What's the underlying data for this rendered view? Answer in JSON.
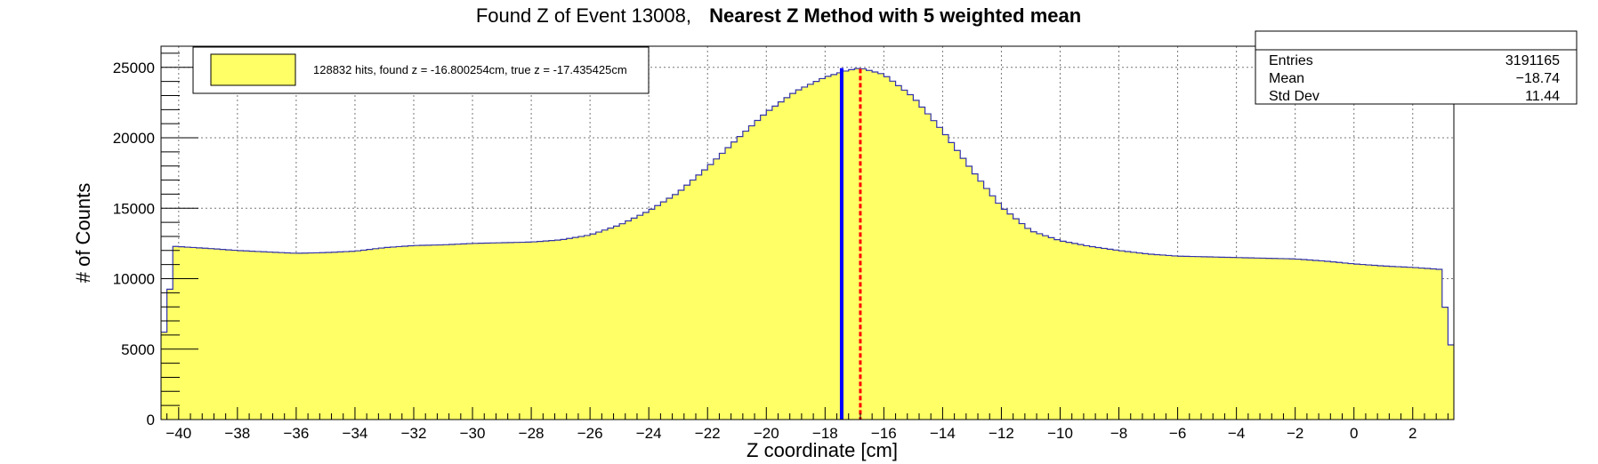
{
  "title": {
    "prefix": "Found Z of Event 13008,",
    "bold": "Nearest Z Method with 5 weighted mean"
  },
  "legend": {
    "label": "128832 hits, found z = -16.800254cm, true z = -17.435425cm",
    "fill_color": "#ffff66"
  },
  "stats": {
    "rows": [
      {
        "label": "Entries",
        "value": "3191165"
      },
      {
        "label": "Mean",
        "value": "−18.74"
      },
      {
        "label": "Std Dev",
        "value": "11.44"
      }
    ]
  },
  "colors": {
    "fill": "#ffff66",
    "outline": "#3333aa",
    "found_line": "#0000ff",
    "true_line": "#ff0000"
  },
  "chart_data": {
    "type": "bar",
    "xlabel": "Z coordinate [cm]",
    "ylabel": "# of Counts",
    "xlim": [
      -40.6,
      3.4
    ],
    "ylim": [
      0,
      26500
    ],
    "grid": true,
    "legend_position": "top-left",
    "x_ticks": [
      -40,
      -38,
      -36,
      -34,
      -32,
      -30,
      -28,
      -26,
      -24,
      -22,
      -20,
      -18,
      -16,
      -14,
      -12,
      -10,
      -8,
      -6,
      -4,
      -2,
      0,
      2
    ],
    "x_tick_labels": [
      "−40",
      "−38",
      "−36",
      "−34",
      "−32",
      "−30",
      "−28",
      "−26",
      "−24",
      "−22",
      "−20",
      "−18",
      "−16",
      "−14",
      "−12",
      "−10",
      "−8",
      "−6",
      "−4",
      "−2",
      "0",
      "2"
    ],
    "y_ticks": [
      0,
      5000,
      10000,
      15000,
      20000,
      25000
    ],
    "y_tick_labels": [
      "0",
      "5000",
      "10000",
      "15000",
      "20000",
      "25000"
    ],
    "bin_width": 0.2,
    "profile": [
      [
        -40.6,
        6200
      ],
      [
        -40.4,
        6200
      ],
      [
        -40.2,
        12300
      ],
      [
        -39.0,
        12150
      ],
      [
        -38.0,
        12000
      ],
      [
        -37.0,
        11900
      ],
      [
        -36.0,
        11800
      ],
      [
        -35.0,
        11850
      ],
      [
        -34.0,
        11950
      ],
      [
        -33.0,
        12200
      ],
      [
        -32.0,
        12350
      ],
      [
        -31.0,
        12400
      ],
      [
        -30.0,
        12500
      ],
      [
        -29.0,
        12550
      ],
      [
        -28.0,
        12600
      ],
      [
        -27.0,
        12750
      ],
      [
        -26.0,
        13100
      ],
      [
        -25.0,
        13800
      ],
      [
        -24.0,
        14800
      ],
      [
        -23.0,
        16100
      ],
      [
        -22.0,
        17900
      ],
      [
        -21.0,
        19900
      ],
      [
        -20.0,
        21800
      ],
      [
        -19.0,
        23300
      ],
      [
        -18.0,
        24300
      ],
      [
        -17.2,
        24800
      ],
      [
        -16.8,
        24950
      ],
      [
        -16.0,
        24500
      ],
      [
        -15.0,
        22900
      ],
      [
        -14.0,
        20500
      ],
      [
        -13.0,
        17700
      ],
      [
        -12.0,
        15100
      ],
      [
        -11.0,
        13400
      ],
      [
        -10.0,
        12700
      ],
      [
        -9.0,
        12300
      ],
      [
        -8.0,
        12000
      ],
      [
        -7.0,
        11750
      ],
      [
        -6.0,
        11600
      ],
      [
        -5.0,
        11550
      ],
      [
        -4.0,
        11500
      ],
      [
        -3.0,
        11450
      ],
      [
        -2.0,
        11400
      ],
      [
        -1.0,
        11250
      ],
      [
        0.0,
        11050
      ],
      [
        1.0,
        10900
      ],
      [
        2.0,
        10800
      ],
      [
        3.0,
        10650
      ],
      [
        3.2,
        5300
      ],
      [
        3.4,
        5300
      ]
    ],
    "found_z": -16.800254,
    "true_z": -17.435425
  }
}
